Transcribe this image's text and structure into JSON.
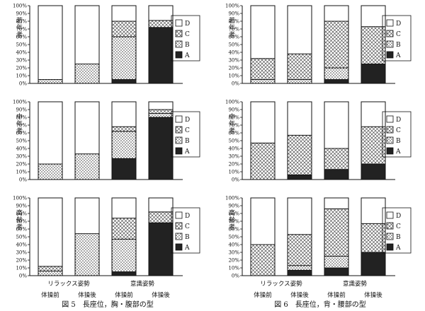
{
  "legend_labels": [
    "D",
    "C",
    "B",
    "A"
  ],
  "tick_labels": [
    "0%",
    "10%",
    "20%",
    "30%",
    "40%",
    "50%",
    "60%",
    "70%",
    "80%",
    "90%",
    "100%"
  ],
  "colors": {
    "A": "#222222",
    "B": "#888888",
    "C": "#dddddd",
    "D": "#ffffff"
  },
  "figures": [
    {
      "caption": "図 5　長座位，胸・腹部の型",
      "group_labels": [
        "リラックス姿勢",
        "意識姿勢"
      ],
      "bar_labels": [
        "体操前",
        "体操後",
        "体操前",
        "体操後"
      ]
    },
    {
      "caption": "図 6　長座位，背・腰部の型",
      "group_labels": [
        "リラックス姿勢",
        "意識姿勢"
      ],
      "bar_labels": [
        "体操前",
        "体操後",
        "体操前",
        "体操後"
      ]
    }
  ],
  "chart_data": [
    {
      "type": "bar",
      "stacked": true,
      "figure": "図5",
      "panel": "若年者",
      "categories": [
        "体操前",
        "体操後",
        "体操前",
        "体操後"
      ],
      "ylim": [
        0,
        100
      ],
      "series": [
        {
          "name": "A",
          "values": [
            0,
            0,
            5,
            72
          ]
        },
        {
          "name": "B",
          "values": [
            5,
            25,
            55,
            0
          ]
        },
        {
          "name": "C",
          "values": [
            0,
            0,
            20,
            9
          ]
        },
        {
          "name": "D",
          "values": [
            95,
            75,
            20,
            19
          ]
        }
      ]
    },
    {
      "type": "bar",
      "stacked": true,
      "figure": "図5",
      "panel": "中年者",
      "categories": [
        "体操前",
        "体操後",
        "体操前",
        "体操後"
      ],
      "ylim": [
        0,
        100
      ],
      "series": [
        {
          "name": "A",
          "values": [
            0,
            0,
            27,
            80
          ]
        },
        {
          "name": "B",
          "values": [
            20,
            33,
            35,
            5
          ]
        },
        {
          "name": "C",
          "values": [
            0,
            0,
            6,
            5
          ]
        },
        {
          "name": "D",
          "values": [
            80,
            67,
            32,
            10
          ]
        }
      ]
    },
    {
      "type": "bar",
      "stacked": true,
      "figure": "図5",
      "panel": "高齢者",
      "categories": [
        "体操前",
        "体操後",
        "体操前",
        "体操後"
      ],
      "ylim": [
        0,
        100
      ],
      "series": [
        {
          "name": "A",
          "values": [
            0,
            0,
            5,
            68
          ]
        },
        {
          "name": "B",
          "values": [
            6,
            54,
            42,
            0
          ]
        },
        {
          "name": "C",
          "values": [
            6,
            0,
            27,
            14
          ]
        },
        {
          "name": "D",
          "values": [
            88,
            46,
            26,
            18
          ]
        }
      ]
    },
    {
      "type": "bar",
      "stacked": true,
      "figure": "図6",
      "panel": "若年者",
      "categories": [
        "体操前",
        "体操後",
        "体操前",
        "体操後"
      ],
      "ylim": [
        0,
        100
      ],
      "series": [
        {
          "name": "A",
          "values": [
            0,
            0,
            5,
            25
          ]
        },
        {
          "name": "B",
          "values": [
            5,
            5,
            15,
            0
          ]
        },
        {
          "name": "C",
          "values": [
            27,
            33,
            60,
            48
          ]
        },
        {
          "name": "D",
          "values": [
            68,
            62,
            20,
            27
          ]
        }
      ]
    },
    {
      "type": "bar",
      "stacked": true,
      "figure": "図6",
      "panel": "中年者",
      "categories": [
        "体操前",
        "体操後",
        "体操前",
        "体操後"
      ],
      "ylim": [
        0,
        100
      ],
      "series": [
        {
          "name": "A",
          "values": [
            0,
            6,
            13,
            20
          ]
        },
        {
          "name": "B",
          "values": [
            0,
            0,
            0,
            0
          ]
        },
        {
          "name": "C",
          "values": [
            47,
            51,
            27,
            48
          ]
        },
        {
          "name": "D",
          "values": [
            53,
            43,
            60,
            32
          ]
        }
      ]
    },
    {
      "type": "bar",
      "stacked": true,
      "figure": "図6",
      "panel": "高齢者",
      "categories": [
        "体操前",
        "体操後",
        "体操前",
        "体操後"
      ],
      "ylim": [
        0,
        100
      ],
      "series": [
        {
          "name": "A",
          "values": [
            0,
            7,
            10,
            30
          ]
        },
        {
          "name": "B",
          "values": [
            0,
            6,
            15,
            0
          ]
        },
        {
          "name": "C",
          "values": [
            40,
            40,
            61,
            37
          ]
        },
        {
          "name": "D",
          "values": [
            60,
            47,
            14,
            33
          ]
        }
      ]
    }
  ]
}
